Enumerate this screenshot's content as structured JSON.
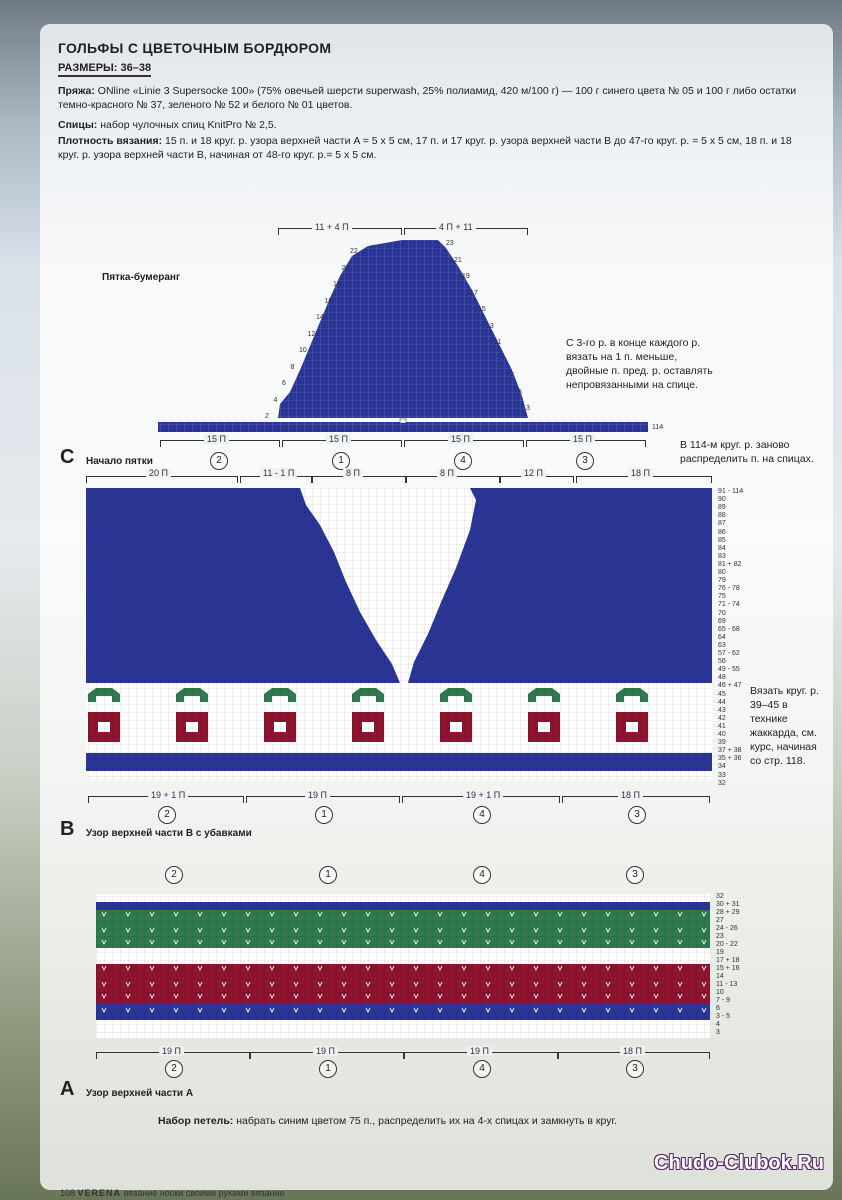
{
  "header": {
    "title": "ГОЛЬФЫ С ЦВЕТОЧНЫМ БОРДЮРОМ",
    "sizes": "РАЗМЕРЫ: 36–38"
  },
  "yarn": {
    "label": "Пряжа:",
    "text": " ONline «Linie 3 Supersocke 100» (75% овечьей шерсти superwash, 25% полиамид, 420 м/100 г) — 100 г синего цвета № 05 и 100 г либо остатки темно-красного № 37, зеленого № 52 и белого № 01 цветов."
  },
  "needles": {
    "label": "Спицы:",
    "text": " набор чулочных спиц KnitPro № 2,5."
  },
  "gauge": {
    "label": "Плотность вязания:",
    "text": " 15 п. и 18 круг. р. узора верхней части A = 5 х 5 см, 17 п. и 17 круг. р. узора верхней части B до 47-го круг. р. = 5 х 5 см, 18 п. и 18 круг. р. узора верхней части B, начиная от 48-го круг. р.= 5 х 5 см."
  },
  "heel": {
    "title": "Пятка-бумеранг",
    "left_top": "11 + 4 П",
    "right_top": "4 П + 11",
    "left_rows": [
      "22",
      "20",
      "18",
      "16",
      "14",
      "12",
      "10",
      "8",
      "6",
      "4",
      "2"
    ],
    "right_rows": [
      "23",
      "21",
      "19",
      "17",
      "15",
      "13",
      "11",
      "9",
      "7",
      "5",
      "3"
    ],
    "row_end": "114",
    "note": "С 3-го р. в конце каждого р. вязать на 1 п. меньше, двойные п. пред. р. оставлять непровязанными на спице.",
    "note2": "В 114-м круг. р. заново распределить п. на спицах.",
    "segments": [
      "15 П",
      "15 П",
      "15 П",
      "15 П"
    ],
    "needles": [
      "2",
      "1",
      "4",
      "3"
    ]
  },
  "chart_c": {
    "letter": "C",
    "title": "Начало пятки",
    "top_labels": [
      "20 П",
      "11 - 1 П",
      "8 П",
      "8 П",
      "12 П",
      "18 П"
    ],
    "rows": [
      "91 - 114",
      "90",
      "89",
      "88",
      "87",
      "86",
      "85",
      "84",
      "83",
      "81 + 82",
      "80",
      "79",
      "76 - 78",
      "75",
      "71 - 74",
      "70",
      "69",
      "65 - 68",
      "64",
      "63",
      "57 - 62",
      "56",
      "49 - 55",
      "48",
      "46 + 47",
      "45",
      "44",
      "43",
      "42",
      "41",
      "40",
      "39",
      "37 + 38",
      "35 + 36",
      "34",
      "33",
      "32"
    ],
    "bottom_labels": [
      "19 + 1 П",
      "19 П",
      "19 + 1 П",
      "18 П"
    ],
    "needles": [
      "2",
      "1",
      "4",
      "3"
    ],
    "note": "Вязать круг. р. 39–45 в технике жаккарда, см. курс, начиная со стр. 118."
  },
  "chart_b": {
    "letter": "B",
    "title": "Узор верхней части B с убавками"
  },
  "chart_a": {
    "letter": "A",
    "title": "Узор верхней части A",
    "needles_top": [
      "2",
      "1",
      "4",
      "3"
    ],
    "rows": [
      "32",
      "30 + 31",
      "28 + 29",
      "27",
      "24 - 26",
      "23",
      "20 - 22",
      "19",
      "17 + 18",
      "15 + 16",
      "14",
      "11 - 13",
      "10",
      "7 - 9",
      "6",
      "3 - 5",
      "4",
      "3"
    ],
    "bottom_labels": [
      "19 П",
      "19 П",
      "19 П",
      "18 П"
    ],
    "needles": [
      "2",
      "1",
      "4",
      "3"
    ]
  },
  "cast_on": {
    "label": "Набор петель:",
    "text": " набрать синим цветом 75 п., распределить их на 4-х спицах и замкнуть в круг."
  },
  "footer": {
    "page": "108",
    "magazine": "VERENA",
    "caption": "вязание носки своими руками вязание"
  },
  "watermark": "Chudo-Clubok.Ru",
  "colors": {
    "blue": "#2b3596",
    "red": "#8e1430",
    "green": "#2e7a4c",
    "white": "#ffffff"
  }
}
